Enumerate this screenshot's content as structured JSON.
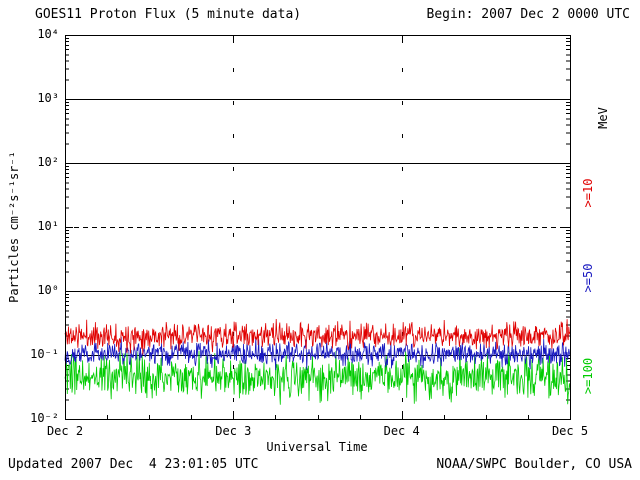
{
  "header": {
    "title": "GOES11 Proton Flux (5 minute data)",
    "begin": "Begin: 2007 Dec 2 0000 UTC"
  },
  "footer": {
    "updated": "Updated 2007 Dec  4 23:01:05 UTC",
    "source": "NOAA/SWPC Boulder, CO USA"
  },
  "chart_data": {
    "type": "line",
    "title": "GOES11 Proton Flux (5 minute data)",
    "xlabel": "Universal Time",
    "ylabel": "Particles cm⁻²s⁻¹sr⁻¹",
    "units_label": "MeV",
    "units_label_color": "#000000",
    "x_ticks": [
      {
        "label": "Dec 2",
        "day": 0
      },
      {
        "label": "Dec 3",
        "day": 1
      },
      {
        "label": "Dec 4",
        "day": 2
      },
      {
        "label": "Dec 5",
        "day": 3
      }
    ],
    "y_ticks": [
      {
        "label": "10⁴",
        "exp": 4
      },
      {
        "label": "10³",
        "exp": 3
      },
      {
        "label": "10²",
        "exp": 2
      },
      {
        "label": "10¹",
        "exp": 1
      },
      {
        "label": "10⁰",
        "exp": 0
      },
      {
        "label": "10⁻¹",
        "exp": -1
      },
      {
        "label": "10⁻²",
        "exp": -2
      }
    ],
    "ylim_exp": [
      -2,
      4
    ],
    "days": 3,
    "points_per_day": 288,
    "grid": {
      "h_lines": [
        {
          "exp": 3,
          "style": "solid"
        },
        {
          "exp": 2,
          "style": "solid"
        },
        {
          "exp": 1,
          "style": "dashed"
        },
        {
          "exp": 0,
          "style": "solid"
        },
        {
          "exp": -1,
          "style": "solid"
        }
      ],
      "v_lines_at_day": [
        1,
        2
      ]
    },
    "legend_position": "right-rotated",
    "series": [
      {
        "name": "Protons >=10 MeV",
        "legend": ">=10",
        "color": "#e00000",
        "mean_flux": 0.2,
        "noise_sigma_log10": 0.1,
        "seed": 11
      },
      {
        "name": "Protons >=50 MeV",
        "legend": ">=50",
        "color": "#1818c0",
        "mean_flux": 0.105,
        "noise_sigma_log10": 0.09,
        "seed": 22
      },
      {
        "name": "Protons >=100 MeV",
        "legend": ">=100",
        "color": "#00cc00",
        "mean_flux": 0.045,
        "noise_sigma_log10": 0.16,
        "seed": 33
      }
    ]
  }
}
